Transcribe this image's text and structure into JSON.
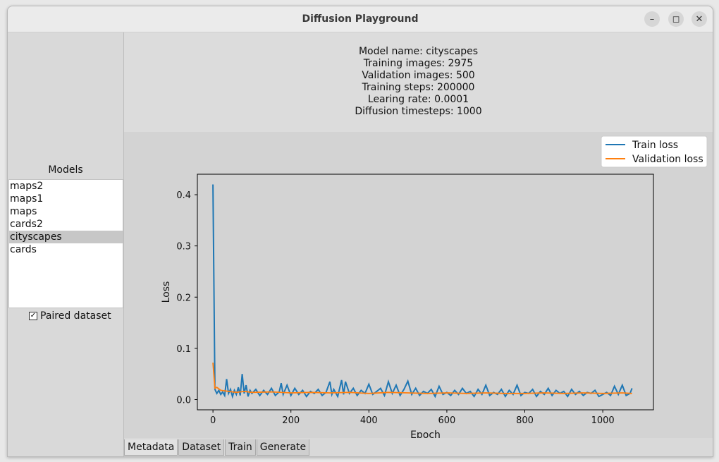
{
  "window": {
    "title": "Diffusion Playground",
    "minimize_icon": "minimize-icon",
    "maximize_icon": "maximize-icon",
    "close_icon": "close-icon"
  },
  "sidebar": {
    "models_label": "Models",
    "models": [
      "maps2",
      "maps1",
      "maps",
      "cards2",
      "cityscapes",
      "cards"
    ],
    "selected_model": "cityscapes",
    "paired_label": "Paired dataset",
    "paired_checked": true
  },
  "metadata": {
    "lines": [
      "Model name: cityscapes",
      "Training images: 2975",
      "Validation images: 500",
      "Training steps: 200000",
      "Learing rate: 0.0001",
      "Diffusion timesteps: 1000"
    ]
  },
  "tabs": [
    "Metadata",
    "Dataset",
    "Train",
    "Generate"
  ],
  "active_tab": "Metadata",
  "chart_data": {
    "type": "line",
    "xlabel": "Epoch",
    "ylabel": "Loss",
    "xlim": [
      -40,
      1130
    ],
    "ylim": [
      -0.02,
      0.44
    ],
    "xticks": [
      0,
      200,
      400,
      600,
      800,
      1000
    ],
    "yticks": [
      0.0,
      0.1,
      0.2,
      0.3,
      0.4
    ],
    "legend_position": "top-right",
    "series": [
      {
        "name": "Train loss",
        "color": "#1f77b4",
        "x": [
          0,
          5,
          10,
          15,
          20,
          25,
          30,
          35,
          40,
          45,
          50,
          55,
          60,
          65,
          70,
          75,
          80,
          85,
          90,
          95,
          100,
          110,
          120,
          130,
          140,
          150,
          160,
          170,
          175,
          180,
          190,
          200,
          210,
          220,
          230,
          240,
          250,
          260,
          270,
          280,
          290,
          300,
          305,
          310,
          320,
          330,
          335,
          340,
          350,
          360,
          370,
          380,
          390,
          400,
          410,
          420,
          430,
          440,
          450,
          460,
          470,
          480,
          490,
          500,
          510,
          520,
          530,
          540,
          550,
          560,
          570,
          580,
          590,
          600,
          610,
          620,
          630,
          640,
          650,
          660,
          670,
          680,
          690,
          700,
          710,
          720,
          730,
          740,
          750,
          760,
          770,
          780,
          790,
          800,
          810,
          820,
          830,
          840,
          850,
          860,
          870,
          880,
          890,
          900,
          910,
          920,
          930,
          940,
          950,
          960,
          970,
          980,
          990,
          1000,
          1010,
          1020,
          1030,
          1040,
          1050,
          1060,
          1070,
          1075
        ],
        "y": [
          0.42,
          0.02,
          0.012,
          0.018,
          0.01,
          0.015,
          0.008,
          0.04,
          0.012,
          0.02,
          0.006,
          0.018,
          0.01,
          0.024,
          0.008,
          0.05,
          0.012,
          0.028,
          0.006,
          0.018,
          0.012,
          0.02,
          0.008,
          0.018,
          0.01,
          0.022,
          0.008,
          0.015,
          0.032,
          0.01,
          0.028,
          0.008,
          0.022,
          0.01,
          0.018,
          0.006,
          0.016,
          0.012,
          0.02,
          0.008,
          0.014,
          0.035,
          0.01,
          0.02,
          0.006,
          0.038,
          0.01,
          0.035,
          0.012,
          0.022,
          0.008,
          0.018,
          0.012,
          0.03,
          0.01,
          0.016,
          0.022,
          0.008,
          0.035,
          0.012,
          0.028,
          0.008,
          0.02,
          0.036,
          0.01,
          0.022,
          0.008,
          0.016,
          0.012,
          0.02,
          0.006,
          0.026,
          0.01,
          0.014,
          0.008,
          0.018,
          0.01,
          0.022,
          0.012,
          0.016,
          0.006,
          0.02,
          0.01,
          0.028,
          0.008,
          0.014,
          0.01,
          0.02,
          0.006,
          0.018,
          0.01,
          0.028,
          0.008,
          0.014,
          0.012,
          0.02,
          0.006,
          0.016,
          0.01,
          0.022,
          0.008,
          0.018,
          0.012,
          0.016,
          0.006,
          0.02,
          0.01,
          0.016,
          0.008,
          0.014,
          0.012,
          0.018,
          0.006,
          0.01,
          0.014,
          0.008,
          0.026,
          0.01,
          0.028,
          0.008,
          0.012,
          0.022
        ]
      },
      {
        "name": "Validation loss",
        "color": "#ff7f0e",
        "x": [
          0,
          5,
          10,
          20,
          40,
          60,
          80,
          100,
          150,
          200,
          250,
          300,
          350,
          400,
          450,
          500,
          550,
          600,
          650,
          700,
          750,
          800,
          850,
          900,
          950,
          1000,
          1050,
          1075
        ],
        "y": [
          0.072,
          0.022,
          0.024,
          0.018,
          0.016,
          0.014,
          0.016,
          0.014,
          0.015,
          0.013,
          0.014,
          0.013,
          0.014,
          0.012,
          0.014,
          0.013,
          0.012,
          0.013,
          0.012,
          0.013,
          0.012,
          0.012,
          0.013,
          0.012,
          0.013,
          0.012,
          0.013,
          0.012
        ]
      }
    ]
  }
}
